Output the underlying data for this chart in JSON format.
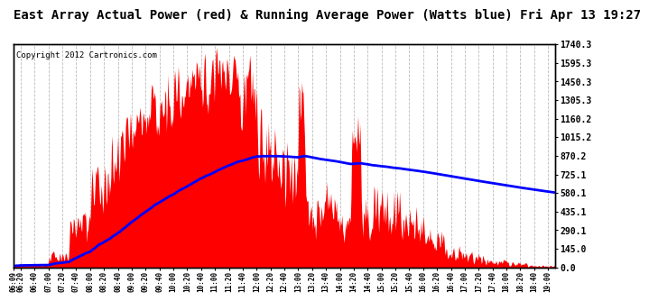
{
  "title": "East Array Actual Power (red) & Running Average Power (Watts blue) Fri Apr 13 19:27",
  "copyright": "Copyright 2012 Cartronics.com",
  "ylabel_right_ticks": [
    0.0,
    145.0,
    290.1,
    435.1,
    580.1,
    725.1,
    870.2,
    1015.2,
    1160.2,
    1305.3,
    1450.3,
    1595.3,
    1740.3
  ],
  "ylim": [
    0,
    1740.3
  ],
  "bg_color": "#ffffff",
  "fill_color": "red",
  "line_color": "blue",
  "grid_color": "#aaaaaa",
  "title_fontsize": 10,
  "copyright_fontsize": 6.5
}
